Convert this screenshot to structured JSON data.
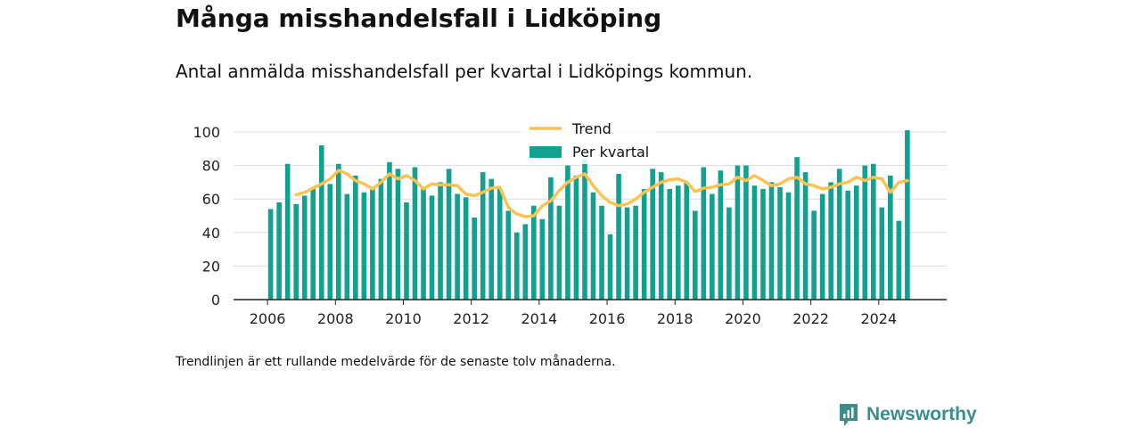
{
  "title": "Många misshandelsfall i Lidköping",
  "subtitle": "Antal anmälda misshandelsfall per kvartal i Lidköpings kommun.",
  "footnote": "Trendlinjen är ett rullande medelvärde för de senaste tolv månaderna.",
  "brand": "Newsworthy",
  "colors": {
    "bar": "#12a190",
    "trend": "#fcc353",
    "grid": "#dddddd",
    "axis": "#222222",
    "brand": "#3a8f8a"
  },
  "chart_data": {
    "type": "bar",
    "series": [
      {
        "name": "Per kvartal",
        "type": "bar",
        "x": [
          "2006 Q1",
          "2006 Q2",
          "2006 Q3",
          "2006 Q4",
          "2007 Q1",
          "2007 Q2",
          "2007 Q3",
          "2007 Q4",
          "2008 Q1",
          "2008 Q2",
          "2008 Q3",
          "2008 Q4",
          "2009 Q1",
          "2009 Q2",
          "2009 Q3",
          "2009 Q4",
          "2010 Q1",
          "2010 Q2",
          "2010 Q3",
          "2010 Q4",
          "2011 Q1",
          "2011 Q2",
          "2011 Q3",
          "2011 Q4",
          "2012 Q1",
          "2012 Q2",
          "2012 Q3",
          "2012 Q4",
          "2013 Q1",
          "2013 Q2",
          "2013 Q3",
          "2013 Q4",
          "2014 Q1",
          "2014 Q2",
          "2014 Q3",
          "2014 Q4",
          "2015 Q1",
          "2015 Q2",
          "2015 Q3",
          "2015 Q4",
          "2016 Q1",
          "2016 Q2",
          "2016 Q3",
          "2016 Q4",
          "2017 Q1",
          "2017 Q2",
          "2017 Q3",
          "2017 Q4",
          "2018 Q1",
          "2018 Q2",
          "2018 Q3",
          "2018 Q4",
          "2019 Q1",
          "2019 Q2",
          "2019 Q3",
          "2019 Q4",
          "2020 Q1",
          "2020 Q2",
          "2020 Q3",
          "2020 Q4",
          "2021 Q1",
          "2021 Q2",
          "2021 Q3",
          "2021 Q4",
          "2022 Q1",
          "2022 Q2",
          "2022 Q3",
          "2022 Q4",
          "2023 Q1",
          "2023 Q2",
          "2023 Q3",
          "2023 Q4",
          "2024 Q1",
          "2024 Q2",
          "2024 Q3",
          "2024 Q4"
        ],
        "values": [
          54,
          58,
          81,
          57,
          62,
          66,
          92,
          69,
          81,
          63,
          74,
          64,
          67,
          72,
          82,
          78,
          58,
          79,
          66,
          62,
          70,
          78,
          63,
          61,
          49,
          76,
          72,
          66,
          53,
          40,
          45,
          56,
          48,
          73,
          56,
          80,
          74,
          84,
          64,
          56,
          39,
          75,
          55,
          56,
          66,
          78,
          76,
          66,
          68,
          70,
          53,
          79,
          63,
          77,
          55,
          80,
          80,
          68,
          66,
          70,
          67,
          64,
          85,
          76,
          53,
          63,
          70,
          78,
          65,
          68,
          80,
          81,
          55,
          74,
          47,
          101
        ]
      },
      {
        "name": "Trend",
        "type": "line",
        "x": [
          "2006 Q4",
          "2007 Q1",
          "2007 Q2",
          "2007 Q3",
          "2007 Q4",
          "2008 Q1",
          "2008 Q2",
          "2008 Q3",
          "2008 Q4",
          "2009 Q1",
          "2009 Q2",
          "2009 Q3",
          "2009 Q4",
          "2010 Q1",
          "2010 Q2",
          "2010 Q3",
          "2010 Q4",
          "2011 Q1",
          "2011 Q2",
          "2011 Q3",
          "2011 Q4",
          "2012 Q1",
          "2012 Q2",
          "2012 Q3",
          "2012 Q4",
          "2013 Q1",
          "2013 Q2",
          "2013 Q3",
          "2013 Q4",
          "2014 Q1",
          "2014 Q2",
          "2014 Q3",
          "2014 Q4",
          "2015 Q1",
          "2015 Q2",
          "2015 Q3",
          "2015 Q4",
          "2016 Q1",
          "2016 Q2",
          "2016 Q3",
          "2016 Q4",
          "2017 Q1",
          "2017 Q2",
          "2017 Q3",
          "2017 Q4",
          "2018 Q1",
          "2018 Q2",
          "2018 Q3",
          "2018 Q4",
          "2019 Q1",
          "2019 Q2",
          "2019 Q3",
          "2019 Q4",
          "2020 Q1",
          "2020 Q2",
          "2020 Q3",
          "2020 Q4",
          "2021 Q1",
          "2021 Q2",
          "2021 Q3",
          "2021 Q4",
          "2022 Q1",
          "2022 Q2",
          "2022 Q3",
          "2022 Q4",
          "2023 Q1",
          "2023 Q2",
          "2023 Q3",
          "2023 Q4",
          "2024 Q1",
          "2024 Q2",
          "2024 Q3",
          "2024 Q4"
        ],
        "values": [
          62.5,
          64,
          66.5,
          69,
          72,
          77,
          75,
          71,
          69,
          66,
          70,
          75,
          72,
          74,
          71,
          66,
          69,
          68.5,
          68.5,
          68,
          63,
          62,
          64,
          66.5,
          67,
          55,
          51,
          49.5,
          50,
          56,
          59,
          65,
          70,
          73,
          75,
          68,
          62,
          58,
          56,
          57,
          60,
          64,
          67,
          70,
          71.5,
          72,
          70,
          64.5,
          66.5,
          67,
          68.5,
          69,
          73,
          71,
          74,
          71,
          68,
          69,
          72,
          73,
          69,
          68,
          66,
          67,
          69,
          70,
          73,
          71,
          73,
          72,
          64,
          70,
          71
        ]
      }
    ],
    "xlim": [
      "2005 Q1",
      "2025 Q4"
    ],
    "ylim": [
      0,
      100
    ],
    "xticks": [
      "2006",
      "2008",
      "2010",
      "2012",
      "2014",
      "2016",
      "2018",
      "2020",
      "2022",
      "2024"
    ],
    "yticks": [
      0,
      20,
      40,
      60,
      80,
      100
    ],
    "grid": true,
    "legend": "top-center"
  }
}
